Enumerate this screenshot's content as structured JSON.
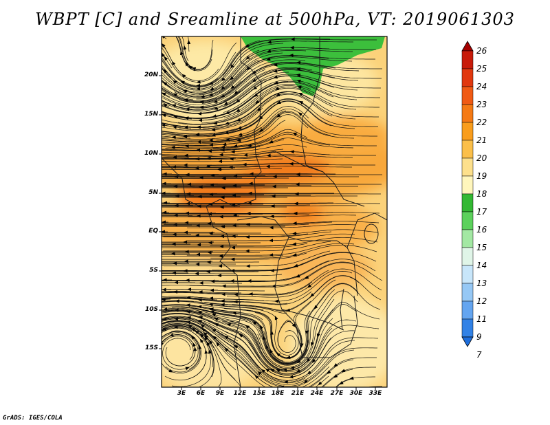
{
  "title": "WBPT [C] and Sreamline at 500hPa, VT: 2019061303",
  "credit": "GrADS: IGES/COLA",
  "map": {
    "variable": "Wet-bulb potential temperature",
    "units": "C",
    "level": "500hPa",
    "valid_time": "2019061303",
    "lat_labels": [
      "20N",
      "15N",
      "10N",
      "5N",
      "EQ",
      "5S",
      "10S",
      "15S"
    ],
    "lon_labels": [
      "3E",
      "6E",
      "9E",
      "12E",
      "15E",
      "18E",
      "21E",
      "24E",
      "27E",
      "30E",
      "33E"
    ]
  },
  "colorbar": {
    "labels": [
      "26",
      "25",
      "24",
      "23",
      "22",
      "21",
      "20",
      "19",
      "18",
      "17",
      "16",
      "15",
      "14",
      "13",
      "12",
      "11",
      "9",
      "7"
    ],
    "colors": [
      "#a50000",
      "#c81b0a",
      "#e1380f",
      "#f05a14",
      "#f57a14",
      "#f99d1c",
      "#fbbf4a",
      "#fde08c",
      "#fff6bc",
      "#33b833",
      "#5cd15c",
      "#a3e8a3",
      "#e0f5e8",
      "#c8e6fa",
      "#96c8f5",
      "#64a5f0",
      "#3282e6",
      "#1e6edc"
    ]
  }
}
